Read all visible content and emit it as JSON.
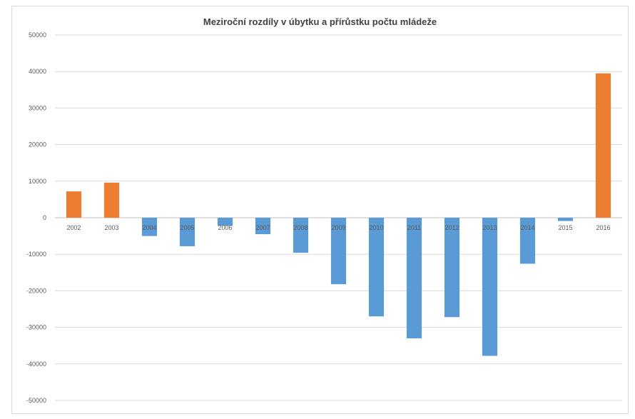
{
  "chart_data": {
    "type": "bar",
    "title": "Meziroční rozdíly v úbytku a přírůstku počtu mládeže",
    "xlabel": "",
    "ylabel": "",
    "ylim": [
      -50000,
      50000
    ],
    "yticks": [
      50000,
      40000,
      30000,
      20000,
      10000,
      0,
      -10000,
      -20000,
      -30000,
      -40000,
      -50000
    ],
    "grid": true,
    "legend": "none",
    "colors": {
      "positive": "#ed7d31",
      "negative": "#5b9bd5",
      "grid": "#d9d9d9",
      "axis": "#bfbfbf",
      "text": "#595959"
    },
    "categories": [
      "2002",
      "2003",
      "2004",
      "2005",
      "2006",
      "2007",
      "2008",
      "2009",
      "2010",
      "2011",
      "2012",
      "2013",
      "2014",
      "2015",
      "2016"
    ],
    "values": [
      7200,
      9600,
      -5000,
      -7800,
      -2200,
      -4500,
      -9600,
      -18200,
      -27000,
      -33000,
      -27200,
      -37800,
      -12600,
      -900,
      39500
    ]
  }
}
